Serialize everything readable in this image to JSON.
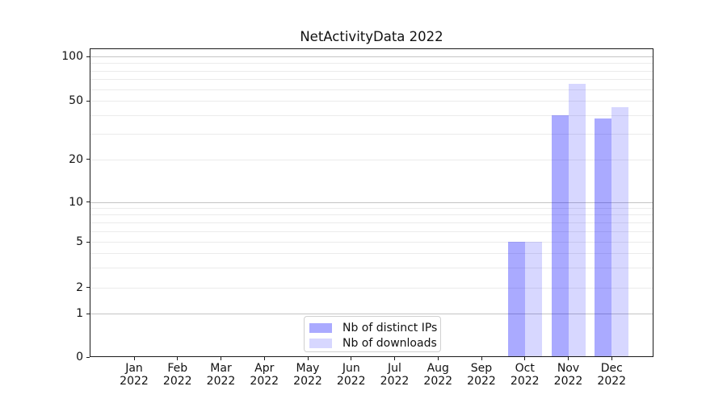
{
  "title": "NetActivityData 2022",
  "chart_data": {
    "type": "bar",
    "title": "NetActivityData 2022",
    "categories": [
      "Jan",
      "Feb",
      "Mar",
      "Apr",
      "May",
      "Jun",
      "Jul",
      "Aug",
      "Sep",
      "Oct",
      "Nov",
      "Dec"
    ],
    "category_year": "2022",
    "series": [
      {
        "name": "Nb of distinct IPs",
        "color": "rgba(0,0,255,0.335)",
        "values": [
          0,
          0,
          0,
          0,
          0,
          0,
          0,
          0,
          0,
          5,
          40,
          38
        ]
      },
      {
        "name": "Nb of downloads",
        "color": "rgba(0,0,255,0.155)",
        "values": [
          0,
          0,
          0,
          0,
          0,
          0,
          0,
          0,
          0,
          5,
          65,
          45
        ]
      }
    ],
    "yaxis": {
      "scale": "symlog",
      "tick_values": [
        0,
        1,
        2,
        5,
        10,
        20,
        50,
        100
      ],
      "tick_labels": [
        "0",
        "1",
        "2",
        "5",
        "10",
        "20",
        "50",
        "100"
      ],
      "major_gridlines": [
        1,
        10,
        100
      ],
      "minor_gridlines": [
        2,
        3,
        4,
        5,
        6,
        7,
        8,
        9,
        20,
        30,
        40,
        50,
        60,
        70,
        80,
        90
      ],
      "ylim": [
        0,
        113
      ]
    },
    "xlabel": "",
    "ylabel": "",
    "grid": true,
    "legend_position": "lower center"
  },
  "colors": {
    "bar_distinct_ips": "rgba(0,0,255,0.335)",
    "bar_downloads": "rgba(0,0,255,0.155)",
    "grid_minor": "#ebebeb",
    "grid_major": "#c4c4c4",
    "axis_frame": "#1a1a1a",
    "text": "#111111"
  }
}
